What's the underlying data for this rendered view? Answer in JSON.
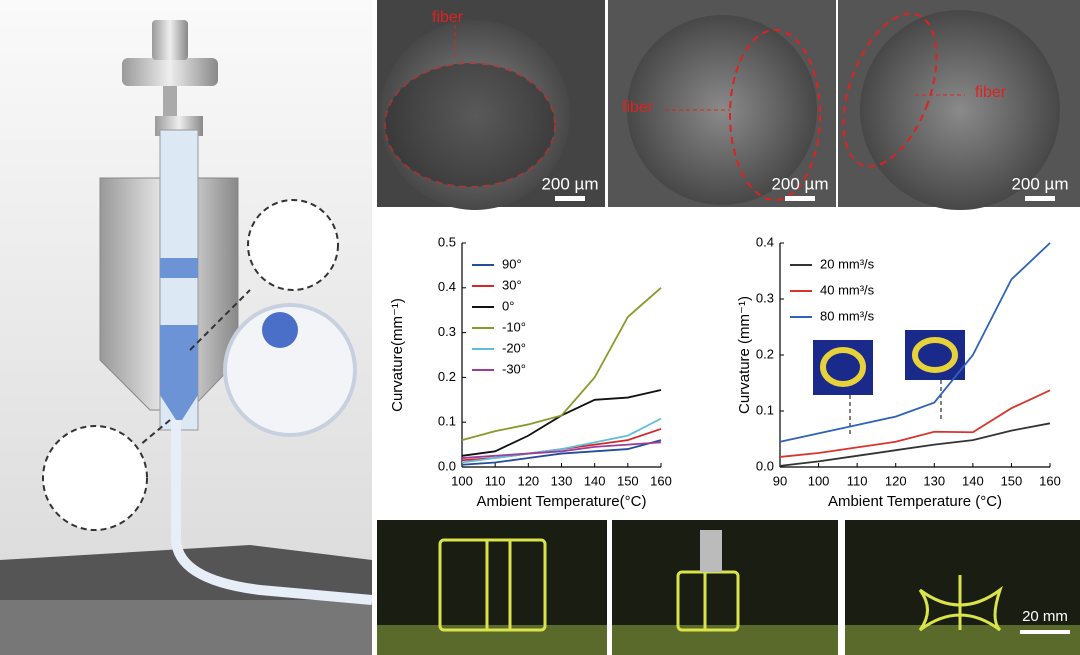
{
  "chart_data": [
    {
      "type": "line",
      "x": [
        100,
        110,
        120,
        130,
        140,
        150,
        160
      ],
      "series": [
        {
          "name": "90°",
          "color": "#1f4e9c",
          "values": [
            0.005,
            0.01,
            0.02,
            0.03,
            0.035,
            0.04,
            0.06
          ]
        },
        {
          "name": "30°",
          "color": "#d62728",
          "values": [
            0.015,
            0.02,
            0.03,
            0.04,
            0.05,
            0.06,
            0.085
          ]
        },
        {
          "name": "0°",
          "color": "#111111",
          "values": [
            0.025,
            0.035,
            0.07,
            0.115,
            0.15,
            0.155,
            0.172
          ]
        },
        {
          "name": "-10°",
          "color": "#8a9a2a",
          "values": [
            0.06,
            0.08,
            0.095,
            0.115,
            0.2,
            0.335,
            0.4
          ]
        },
        {
          "name": "-20°",
          "color": "#5bc0de",
          "values": [
            0.01,
            0.02,
            0.03,
            0.04,
            0.055,
            0.07,
            0.108
          ]
        },
        {
          "name": "-30°",
          "color": "#9b3d9b",
          "values": [
            0.02,
            0.025,
            0.03,
            0.035,
            0.045,
            0.05,
            0.055
          ]
        }
      ],
      "xlabel": "Ambient Temperature(°C)",
      "ylabel": "Curvature(mm⁻¹)",
      "xlim": [
        100,
        160
      ],
      "xticks": [
        100,
        110,
        120,
        130,
        140,
        150,
        160
      ],
      "ylim": [
        0,
        0.5
      ],
      "yticks": [
        {
          "value": 0,
          "label": "0.0"
        },
        0.1,
        0.2,
        0.3,
        0.4,
        0.5
      ],
      "legend": "upper left"
    },
    {
      "type": "line",
      "x": [
        90,
        100,
        110,
        120,
        130,
        140,
        150,
        160
      ],
      "series": [
        {
          "name": "20 mm³/s",
          "color": "#333333",
          "values": [
            0.002,
            0.01,
            0.02,
            0.03,
            0.04,
            0.048,
            0.065,
            0.078
          ]
        },
        {
          "name": "40 mm³/s",
          "color": "#d9342b",
          "values": [
            0.018,
            0.025,
            0.035,
            0.045,
            0.063,
            0.062,
            0.105,
            0.137
          ]
        },
        {
          "name": "80 mm³/s",
          "color": "#2e63b8",
          "values": [
            0.045,
            0.06,
            0.075,
            0.09,
            0.115,
            0.2,
            0.335,
            0.4
          ]
        }
      ],
      "xlabel": "Ambient Temperature (°C)",
      "ylabel": "Curvature (mm⁻¹)",
      "xlim": [
        90,
        160
      ],
      "xticks": [
        90,
        100,
        110,
        120,
        130,
        140,
        150,
        160
      ],
      "ylim": [
        0,
        0.4
      ],
      "yticks": [
        {
          "value": 0,
          "label": "0.0"
        },
        0.1,
        0.2,
        0.3,
        0.4
      ],
      "legend": "upper left"
    }
  ],
  "sem_images": [
    {
      "label": "fiber",
      "scale_bar": "200 µm"
    },
    {
      "label": "fiber",
      "scale_bar": "200 µm"
    },
    {
      "label": "fiber",
      "scale_bar": "200 µm"
    }
  ],
  "photo_scale_bar": "20 mm"
}
